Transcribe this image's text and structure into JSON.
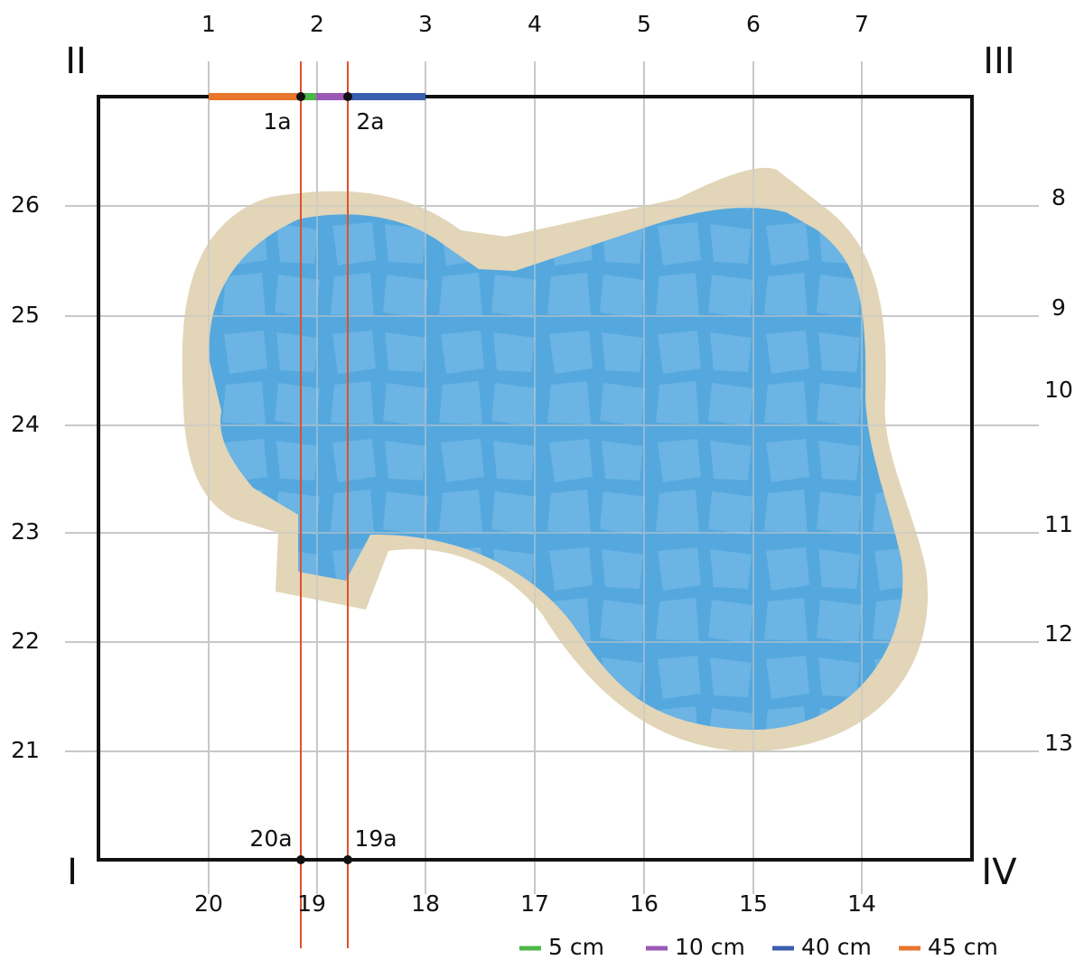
{
  "top_labels": [
    "1",
    "2",
    "3",
    "4",
    "5",
    "6",
    "7"
  ],
  "bottom_labels": [
    "20",
    "19",
    "18",
    "17",
    "16",
    "15",
    "14"
  ],
  "left_labels": [
    "26",
    "25",
    "24",
    "23",
    "22",
    "21"
  ],
  "right_labels": [
    "8",
    "9",
    "10",
    "11",
    "12",
    "13"
  ],
  "corners": {
    "bottom_left": "I",
    "top_left": "II",
    "top_right": "III",
    "bottom_right": "IV"
  },
  "points": {
    "top": [
      "1a",
      "2a"
    ],
    "bottom": [
      "20a",
      "19a"
    ]
  },
  "legend": [
    {
      "label": "5 cm",
      "color": "#4cb848"
    },
    {
      "label": "10 cm",
      "color": "#9b59b6"
    },
    {
      "label": "40 cm",
      "color": "#3a5fb0"
    },
    {
      "label": "45 cm",
      "color": "#e8762c"
    }
  ]
}
